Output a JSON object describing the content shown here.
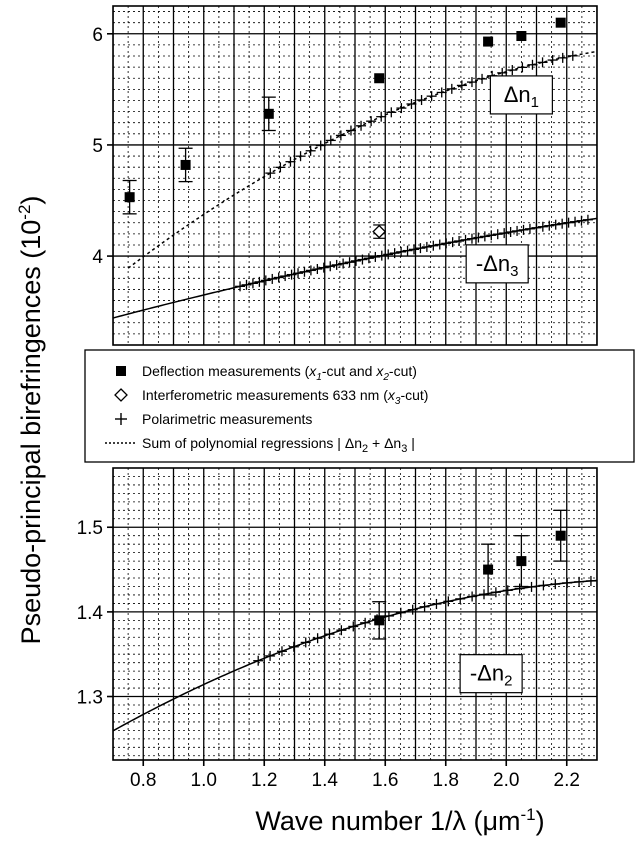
{
  "chart_data": {
    "type": "scatter",
    "xlabel_parts": {
      "main": "Wave number 1/λ  (μm",
      "sup": "-1",
      "close": ")"
    },
    "ylabel_parts": {
      "main": "Pseudo-principal birefringences (10",
      "sup": "-2",
      "close": ")"
    },
    "xlim": [
      0.7,
      2.3
    ],
    "x_ticks": [
      "0.8",
      "1.0",
      "1.2",
      "1.4",
      "1.6",
      "1.8",
      "2.0",
      "2.2"
    ],
    "x_tick_values": [
      0.8,
      1.0,
      1.2,
      1.4,
      1.6,
      1.8,
      2.0,
      2.2
    ],
    "upper_panel": {
      "ylim": [
        3.2,
        6.25
      ],
      "y_ticks": [
        "4",
        "5",
        "6"
      ],
      "y_tick_values": [
        4,
        5,
        6
      ],
      "labels": {
        "dn1": {
          "prefix": "Δn",
          "sub": "1",
          "x": 2.05,
          "y": 5.45
        },
        "dn3": {
          "prefix": "-Δn",
          "sub": "3",
          "x": 1.97,
          "y": 3.93
        }
      },
      "deflection": [
        {
          "x": 0.755,
          "y": 4.53,
          "err": 0.15
        },
        {
          "x": 0.94,
          "y": 4.82,
          "err": 0.15
        },
        {
          "x": 1.215,
          "y": 5.28,
          "err": 0.15
        },
        {
          "x": 1.58,
          "y": 5.6,
          "err": 0.0
        },
        {
          "x": 1.94,
          "y": 5.93,
          "err": 0.0
        },
        {
          "x": 2.05,
          "y": 5.98,
          "err": 0.0
        },
        {
          "x": 2.18,
          "y": 6.1,
          "err": 0.0
        }
      ],
      "interferometric": [
        {
          "x": 1.58,
          "y": 4.22,
          "err": 0.06
        }
      ],
      "polarimetric_dn1": {
        "x_start": 1.22,
        "x_end": 2.22,
        "count": 31,
        "a": 5.27,
        "b": 1.18,
        "c": -0.52
      },
      "polarimetric_dn3": {
        "x_start": 1.12,
        "x_end": 2.27,
        "count": 55,
        "a": 4.01,
        "b": 0.54,
        "c": -0.1
      },
      "fit_dn1": {
        "x_start": 0.75,
        "x_end": 2.3,
        "a": 5.27,
        "b": 1.18,
        "c": -0.52
      },
      "fit_dn3": {
        "x_start": 0.7,
        "x_end": 2.3,
        "a": 4.01,
        "b": 0.54,
        "c": -0.1
      }
    },
    "lower_panel": {
      "ylim": [
        1.225,
        1.57
      ],
      "y_ticks": [
        "1.3",
        "1.4",
        "1.5"
      ],
      "y_tick_values": [
        1.3,
        1.4,
        1.5
      ],
      "labels": {
        "dn2": {
          "prefix": "-Δn",
          "sub": "2",
          "x": 1.95,
          "y": 1.327
        }
      },
      "deflection": [
        {
          "x": 1.58,
          "y": 1.39,
          "err": 0.022
        },
        {
          "x": 1.94,
          "y": 1.45,
          "err": 0.03
        },
        {
          "x": 2.05,
          "y": 1.46,
          "err": 0.03
        },
        {
          "x": 2.18,
          "y": 1.49,
          "err": 0.03
        }
      ],
      "polarimetric_dn2": {
        "x_start": 1.18,
        "x_end": 2.28,
        "count": 29,
        "a": 1.394,
        "b": 0.1,
        "c": -0.055
      },
      "fit_dn2": {
        "x_start": 0.7,
        "x_end": 2.3,
        "a": 1.394,
        "b": 0.1,
        "c": -0.055
      }
    },
    "legend": {
      "placement": "center",
      "entries": [
        {
          "marker": "square",
          "text_parts": [
            "Deflection measurements (",
            "x",
            "1",
            "-cut and ",
            "x",
            "2",
            "-cut)"
          ]
        },
        {
          "marker": "diamond",
          "text_parts": [
            "Interferometric measurements 633 nm (",
            "x",
            "3",
            "-cut)"
          ]
        },
        {
          "marker": "plus",
          "text_parts": [
            "Polarimetric measurements"
          ]
        },
        {
          "marker": "dotted",
          "text_parts": [
            "Sum of polynomial regressions | Δn",
            "",
            "2",
            " + Δn",
            "",
            "3",
            " |"
          ]
        }
      ]
    },
    "grid": "major solid, minor dotted"
  }
}
